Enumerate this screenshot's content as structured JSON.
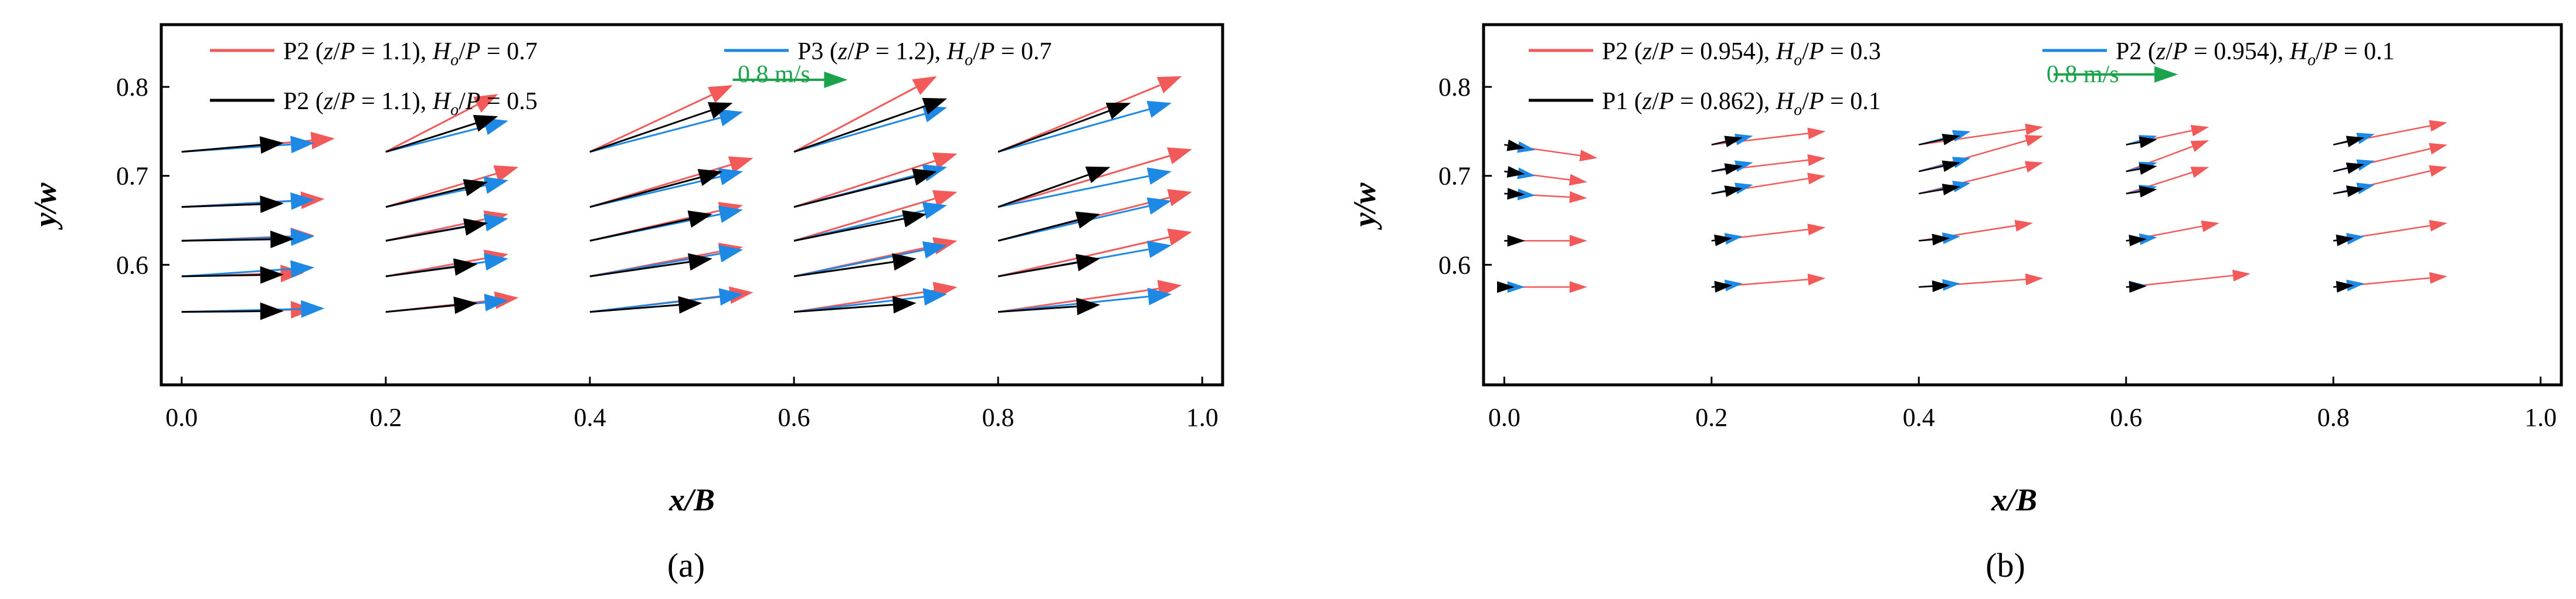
{
  "colors": {
    "P2_07": "#f25a5a",
    "P3_07": "#1e88e5",
    "P2_05": "#000000",
    "P2_03": "#f25a5a",
    "P2_01": "#1e88e5",
    "P1_01": "#000000",
    "scale": "#1aa34a"
  },
  "chart_data": [
    {
      "type": "quiver",
      "panel": "(a)",
      "caption": "(a)",
      "xlabel": "x/B",
      "ylabel": "y/w",
      "xlim": [
        -0.02,
        1.02
      ],
      "ylim": [
        0.465,
        0.87
      ],
      "xticks": [
        "0.0",
        "0.2",
        "0.4",
        "0.6",
        "0.8",
        "1.0"
      ],
      "yticks": [
        "0.6",
        "0.7",
        "0.8"
      ],
      "xtick_values": [
        0,
        0.2,
        0.4,
        0.6,
        0.8,
        1.0
      ],
      "ytick_values": [
        0.6,
        0.7,
        0.8
      ],
      "scale_label": "0.8 m/s",
      "scale_speed": 0.8,
      "scale_anchor": [
        0.54,
        0.808
      ],
      "scale_length_x": 0.1125,
      "legend": [
        {
          "key": "P2_07",
          "prefix": "P2 (",
          "z": "z",
          "mid": "/",
          "P1": "P",
          "eq": " = 1.1), ",
          "H": "H",
          "o": "o",
          "mid2": "/",
          "P2": "P",
          "val": " = 0.7"
        },
        {
          "key": "P3_07",
          "prefix": "P3 (",
          "z": "z",
          "mid": "/",
          "P1": "P",
          "eq": " = 1.2), ",
          "H": "H",
          "o": "o",
          "mid2": "/",
          "P2": "P",
          "val": " = 0.7"
        },
        {
          "key": "P2_05",
          "prefix": "P2 (",
          "z": "z",
          "mid": "/",
          "P1": "P",
          "eq": " = 1.1), ",
          "H": "H",
          "o": "o",
          "mid2": "/",
          "P2": "P",
          "val": " = 0.5"
        }
      ],
      "columns": [
        0.0,
        0.2,
        0.4,
        0.6,
        0.8
      ],
      "rows": [
        0.727,
        0.665,
        0.627,
        0.587,
        0.547
      ],
      "series": [
        {
          "name": "P2 (z/P = 1.1), Ho/P = 0.7",
          "key": "P2_07",
          "dx": [
            [
              0.15,
              0.11,
              0.14,
              0.14,
              0.18
            ],
            [
              0.14,
              0.13,
              0.16,
              0.16,
              0.19
            ],
            [
              0.13,
              0.12,
              0.15,
              0.16,
              0.19
            ],
            [
              0.12,
              0.12,
              0.15,
              0.16,
              0.19
            ],
            [
              0.13,
              0.13,
              0.16,
              0.16,
              0.18
            ]
          ],
          "dy": [
            [
              0.015,
              0.065,
              0.075,
              0.085,
              0.085
            ],
            [
              0.009,
              0.045,
              0.055,
              0.06,
              0.065
            ],
            [
              0.006,
              0.03,
              0.04,
              0.055,
              0.055
            ],
            [
              0.004,
              0.025,
              0.033,
              0.04,
              0.05
            ],
            [
              0.003,
              0.016,
              0.022,
              0.028,
              0.03
            ]
          ]
        },
        {
          "name": "P3 (z/P = 1.2), Ho/P = 0.7",
          "key": "P3_07",
          "dx": [
            [
              0.13,
              0.12,
              0.15,
              0.15,
              0.17
            ],
            [
              0.13,
              0.12,
              0.15,
              0.15,
              0.17
            ],
            [
              0.13,
              0.12,
              0.15,
              0.15,
              0.17
            ],
            [
              0.13,
              0.12,
              0.15,
              0.15,
              0.17
            ],
            [
              0.14,
              0.12,
              0.15,
              0.15,
              0.17
            ]
          ],
          "dy": [
            [
              0.01,
              0.035,
              0.045,
              0.05,
              0.055
            ],
            [
              0.008,
              0.03,
              0.04,
              0.045,
              0.04
            ],
            [
              0.005,
              0.025,
              0.035,
              0.04,
              0.045
            ],
            [
              0.01,
              0.02,
              0.03,
              0.035,
              0.035
            ],
            [
              0.004,
              0.013,
              0.02,
              0.02,
              0.02
            ]
          ]
        },
        {
          "name": "P2 (z/P = 1.1), Ho/P = 0.5",
          "key": "P2_05",
          "dx": [
            [
              0.1,
              0.11,
              0.14,
              0.15,
              0.13
            ],
            [
              0.1,
              0.1,
              0.13,
              0.14,
              0.11
            ],
            [
              0.11,
              0.1,
              0.12,
              0.13,
              0.1
            ],
            [
              0.1,
              0.09,
              0.12,
              0.12,
              0.1
            ],
            [
              0.1,
              0.09,
              0.11,
              0.12,
              0.1
            ]
          ],
          "dy": [
            [
              0.01,
              0.04,
              0.055,
              0.06,
              0.055
            ],
            [
              0.004,
              0.028,
              0.04,
              0.04,
              0.045
            ],
            [
              0.002,
              0.02,
              0.03,
              0.03,
              0.03
            ],
            [
              0.002,
              0.014,
              0.02,
              0.02,
              0.02
            ],
            [
              0.001,
              0.01,
              0.01,
              0.01,
              0.008
            ]
          ]
        }
      ]
    },
    {
      "type": "quiver",
      "panel": "(b)",
      "caption": "(b)",
      "xlabel": "x/B",
      "ylabel": "y/w",
      "xlim": [
        -0.02,
        1.02
      ],
      "ylim": [
        0.465,
        0.87
      ],
      "xticks": [
        "0.0",
        "0.2",
        "0.4",
        "0.6",
        "0.8",
        "1.0"
      ],
      "yticks": [
        "0.6",
        "0.7",
        "0.8"
      ],
      "xtick_values": [
        0,
        0.2,
        0.4,
        0.6,
        0.8,
        1.0
      ],
      "ytick_values": [
        0.6,
        0.7,
        0.8
      ],
      "scale_label": "0.8 m/s",
      "scale_speed": 0.8,
      "scale_anchor": [
        0.53,
        0.814
      ],
      "scale_length_x": 0.12,
      "legend": [
        {
          "key": "P2_03",
          "prefix": "P2 (",
          "z": "z",
          "mid": "/",
          "P1": "P",
          "eq": " = 0.954), ",
          "H": "H",
          "o": "o",
          "mid2": "/",
          "P2": "P",
          "val": " = 0.3"
        },
        {
          "key": "P2_01",
          "prefix": "P2 (",
          "z": "z",
          "mid": "/",
          "P1": "P",
          "eq": " = 0.954), ",
          "H": "H",
          "o": "o",
          "mid2": "/",
          "P2": "P",
          "val": " = 0.1"
        },
        {
          "key": "P1_01",
          "prefix": "P1 (",
          "z": "z",
          "mid": "/",
          "P1": "P",
          "eq": " = 0.862), ",
          "H": "H",
          "o": "o",
          "mid2": "/",
          "P2": "P",
          "val": " = 0.1"
        }
      ],
      "columns": [
        0.0,
        0.2,
        0.4,
        0.6,
        0.8
      ],
      "rows": [
        0.735,
        0.705,
        0.68,
        0.627,
        0.575
      ],
      "series": [
        {
          "name": "P2 (z/P = 0.954), Ho/P = 0.3",
          "key": "P2_03",
          "dx": [
            [
              0.09,
              0.11,
              0.12,
              0.08,
              0.11
            ],
            [
              0.08,
              0.11,
              0.12,
              0.08,
              0.11
            ],
            [
              0.08,
              0.11,
              0.12,
              0.08,
              0.11
            ],
            [
              0.08,
              0.11,
              0.11,
              0.09,
              0.11
            ],
            [
              0.08,
              0.11,
              0.12,
              0.12,
              0.11
            ]
          ],
          "dy": [
            [
              -0.015,
              0.015,
              0.02,
              0.02,
              0.025
            ],
            [
              -0.012,
              0.015,
              0.04,
              0.035,
              0.03
            ],
            [
              -0.005,
              0.02,
              0.035,
              0.03,
              0.03
            ],
            [
              0,
              0.015,
              0.02,
              0.02,
              0.02
            ],
            [
              0,
              0.01,
              0.01,
              0.015,
              0.012
            ]
          ]
        },
        {
          "name": "P2 (z/P = 0.954), Ho/P = 0.1",
          "key": "P2_01",
          "dx": [
            [
              0.03,
              0.04,
              0.05,
              0.03,
              0.04
            ],
            [
              0.03,
              0.04,
              0.05,
              0.03,
              0.04
            ],
            [
              0.03,
              0.04,
              0.05,
              0.03,
              0.04
            ],
            [
              0.02,
              0.03,
              0.04,
              0.03,
              0.03
            ],
            [
              0.02,
              0.03,
              0.04,
              0.02,
              0.03
            ]
          ],
          "dy": [
            [
              -0.006,
              0.01,
              0.015,
              0.01,
              0.012
            ],
            [
              -0.005,
              0.01,
              0.015,
              0.01,
              0.012
            ],
            [
              -0.002,
              0.01,
              0.012,
              0.008,
              0.01
            ],
            [
              0,
              0.005,
              0.005,
              0.004,
              0.005
            ],
            [
              0,
              0.004,
              0.004,
              0.002,
              0.004
            ]
          ]
        },
        {
          "name": "P1 (z/P = 0.862), Ho/P = 0.1",
          "key": "P1_01",
          "dx": [
            [
              0.02,
              0.03,
              0.04,
              0.03,
              0.03
            ],
            [
              0.02,
              0.03,
              0.04,
              0.03,
              0.03
            ],
            [
              0.02,
              0.03,
              0.04,
              0.03,
              0.03
            ],
            [
              0.02,
              0.02,
              0.03,
              0.02,
              0.02
            ],
            [
              0.01,
              0.02,
              0.03,
              0.02,
              0.02
            ]
          ],
          "dy": [
            [
              -0.004,
              0.008,
              0.01,
              0.006,
              0.008
            ],
            [
              -0.003,
              0.006,
              0.01,
              0.006,
              0.008
            ],
            [
              -0.001,
              0.006,
              0.008,
              0.005,
              0.006
            ],
            [
              0,
              0.003,
              0.003,
              0.002,
              0.003
            ],
            [
              0,
              0.002,
              0.002,
              0.001,
              0.002
            ]
          ]
        }
      ]
    }
  ]
}
